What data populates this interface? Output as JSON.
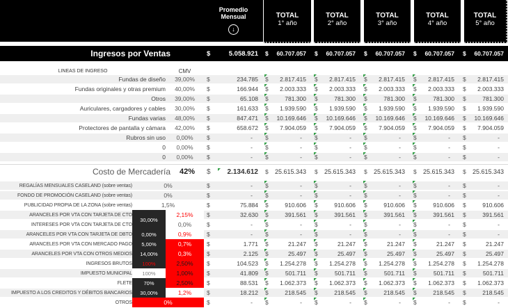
{
  "colors": {
    "header_black": "#000000",
    "dark_cell": "#262626",
    "accent_red": "#fe0000",
    "row_stripe": "#efefef",
    "comment_flag_green": "#2f9e44"
  },
  "header": {
    "avg_col": {
      "line1": "Promedio",
      "line2": "Mensual",
      "icon": "circle-down-arrow"
    },
    "year_cols": [
      {
        "title": "TOTAL",
        "sub": "1° año"
      },
      {
        "title": "TOTAL",
        "sub": "2° año"
      },
      {
        "title": "TOTAL",
        "sub": "3° año"
      },
      {
        "title": "TOTAL",
        "sub": "4° año"
      },
      {
        "title": "TOTAL",
        "sub": "5° año"
      }
    ]
  },
  "ingresos": {
    "label": "Ingresos por Ventas",
    "currency": "$",
    "avg": "5.058.921",
    "years": [
      "60.707.057",
      "60.707.057",
      "60.707.057",
      "60.707.057",
      "60.707.057"
    ]
  },
  "section_header": {
    "left": "LINEAS DE INGRESO",
    "cmv": "CMV"
  },
  "income_rows": [
    {
      "label": "Fundas de diseño",
      "cmv": "39,00%",
      "avg": "234.785",
      "years": [
        "2.817.415",
        "2.817.415",
        "2.817.415",
        "2.817.415",
        "2.817.415"
      ],
      "shaded": true
    },
    {
      "label": "Fundas originales y otras premium",
      "cmv": "40,00%",
      "avg": "166.944",
      "years": [
        "2.003.333",
        "2.003.333",
        "2.003.333",
        "2.003.333",
        "2.003.333"
      ],
      "shaded": false
    },
    {
      "label": "Otros",
      "cmv": "39,00%",
      "avg": "65.108",
      "years": [
        "781.300",
        "781.300",
        "781.300",
        "781.300",
        "781.300"
      ],
      "shaded": true
    },
    {
      "label": "Auriculares, cargadores y cables",
      "cmv": "30,00%",
      "avg": "161.633",
      "years": [
        "1.939.590",
        "1.939.590",
        "1.939.590",
        "1.939.590",
        "1.939.590"
      ],
      "shaded": false
    },
    {
      "label": "Fundas varias",
      "cmv": "48,00%",
      "avg": "847.471",
      "years": [
        "10.169.646",
        "10.169.646",
        "10.169.646",
        "10.169.646",
        "10.169.646"
      ],
      "shaded": true
    },
    {
      "label": "Protectores de pantalla y cámara",
      "cmv": "42,00%",
      "avg": "658.672",
      "years": [
        "7.904.059",
        "7.904.059",
        "7.904.059",
        "7.904.059",
        "7.904.059"
      ],
      "shaded": false
    },
    {
      "label": "Rubros sin uso",
      "cmv": "0,00%",
      "avg": "-",
      "years": [
        "-",
        "-",
        "-",
        "-",
        "-"
      ],
      "shaded": true
    },
    {
      "label": "0",
      "cmv": "0,00%",
      "avg": "-",
      "years": [
        "-",
        "-",
        "-",
        "-",
        "-"
      ],
      "shaded": false
    },
    {
      "label": "0",
      "cmv": "0,00%",
      "avg": "-",
      "years": [
        "-",
        "-",
        "-",
        "-",
        "-"
      ],
      "shaded": true
    }
  ],
  "costo": {
    "label": "Costo de Mercadería",
    "pct": "42%",
    "currency": "$",
    "avg": "2.134.612",
    "years": [
      "25.615.343",
      "25.615.343",
      "25.615.343",
      "25.615.343",
      "25.615.343"
    ]
  },
  "expense_rows": [
    {
      "label": "REGALÍAS MENSUALES CASELAND (sobre ventas)",
      "merged_pct": "0%",
      "merged_red": false,
      "avg": "-",
      "years": [
        "-",
        "-",
        "-",
        "-",
        "-"
      ],
      "shaded": true
    },
    {
      "label": "FONDO DE PROMOCIÓN CASELAND (sobre ventas)",
      "merged_pct": "0%",
      "merged_red": false,
      "avg": "-",
      "years": [
        "-",
        "-",
        "-",
        "-",
        "-"
      ],
      "shaded": true
    },
    {
      "label": "PUBLICIDAD PROPIA DE LA ZONA (sobre ventas)",
      "merged_pct": "1,5%",
      "merged_red": false,
      "avg": "75.884",
      "years": [
        "910.606",
        "910.606",
        "910.606",
        "910.606",
        "910.606"
      ],
      "shaded": false
    },
    {
      "label": "ARANCELES POR VTA CON TARJETA DE CTO",
      "p1": "30,00%",
      "p1_style": "dark",
      "p1_span": 2,
      "p2": "2,15%",
      "p2_style": "red-text",
      "avg": "32.630",
      "years": [
        "391.561",
        "391.561",
        "391.561",
        "391.561",
        "391.561"
      ],
      "shaded": true
    },
    {
      "label": "INTERESES POR VTA CON TARJETA DE CTO",
      "p1": "",
      "p1_style": "covered",
      "p2": "0,0%",
      "p2_style": "plain",
      "avg": "-",
      "years": [
        "-",
        "-",
        "-",
        "-",
        "-"
      ],
      "shaded": false
    },
    {
      "label": "ARANCELES POR VTA CON TARJETA DE DBTO",
      "p1": "0,00%",
      "p1_style": "dark",
      "p2": "0,9%",
      "p2_style": "red-text",
      "avg": "-",
      "years": [
        "-",
        "-",
        "-",
        "-",
        "-"
      ],
      "shaded": true
    },
    {
      "label": "ARANCELES POR VTA CON MERCADO PAGO",
      "p1": "5,00%",
      "p1_style": "dark",
      "p2": "0,7%",
      "p2_style": "red-bg-light",
      "avg": "1.771",
      "years": [
        "21.247",
        "21.247",
        "21.247",
        "21.247",
        "21.247"
      ],
      "shaded": false
    },
    {
      "label": "ARANCELES POR VTA CON OTROS MEDIOS",
      "p1": "14,00%",
      "p1_style": "dark",
      "p2": "0,3%",
      "p2_style": "red-bg-light",
      "avg": "2.125",
      "years": [
        "25.497",
        "25.497",
        "25.497",
        "25.497",
        "25.497"
      ],
      "shaded": true
    },
    {
      "label": "INGRESOS BRUTOS",
      "p1": "100%",
      "p1_style": "dark-red",
      "p2": "2,50%",
      "p2_style": "red-bg-dark",
      "avg": "104.523",
      "years": [
        "1.254.278",
        "1.254.278",
        "1.254.278",
        "1.254.278",
        "1.254.278"
      ],
      "shaded": false
    },
    {
      "label": "IMPUESTO MUNICIPAL",
      "p1": "100%",
      "p1_style": "plain-gray",
      "p2": "1,00%",
      "p2_style": "red-bg-dark",
      "avg": "41.809",
      "years": [
        "501.711",
        "501.711",
        "501.711",
        "501.711",
        "501.711"
      ],
      "shaded": true
    },
    {
      "label": "FLETE",
      "p1": "70%",
      "p1_style": "dark",
      "p2": "2,50%",
      "p2_style": "red-bg-dark",
      "avg": "88.531",
      "years": [
        "1.062.373",
        "1.062.373",
        "1.062.373",
        "1.062.373",
        "1.062.373"
      ],
      "shaded": false
    },
    {
      "label": "IMPUESTO A LOS CREDITOS Y DÉBITOS BANCARIOS",
      "p1": "30,00%",
      "p1_style": "dark",
      "p2": "1,2%",
      "p2_style": "red-text",
      "avg": "18.212",
      "years": [
        "218.545",
        "218.545",
        "218.545",
        "218.545",
        "218.545"
      ],
      "shaded": true
    },
    {
      "label": "OTROS",
      "merged_pct": "0%",
      "merged_red": true,
      "avg": "-",
      "years": [
        "-",
        "-",
        "-",
        "-",
        "-"
      ],
      "shaded": false
    }
  ]
}
